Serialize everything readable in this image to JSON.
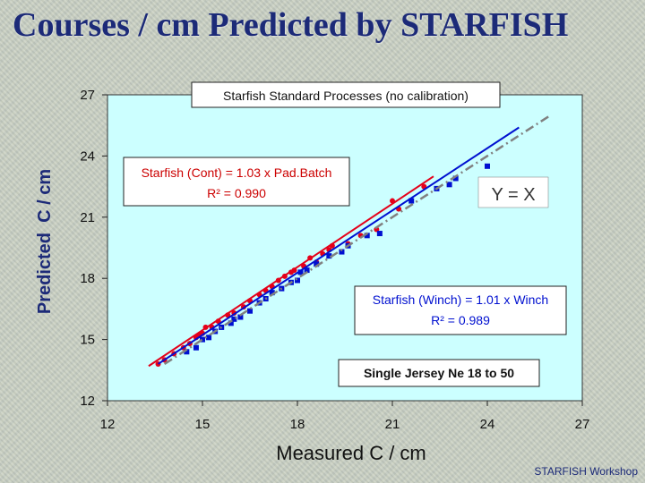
{
  "slide": {
    "title": "Courses / cm Predicted by STARFISH",
    "footer": "STARFISH Workshop"
  },
  "colors": {
    "plot_background": "#ccffff",
    "cont_series": "#e4001a",
    "winch_series": "#0010d0",
    "identity_line": "#808080",
    "title_text": "#1c2a78"
  },
  "chart_data": {
    "type": "scatter",
    "xlabel": "Measured C / cm",
    "ylabel": "Predicted  C / cm",
    "xlim": [
      12,
      27
    ],
    "ylim": [
      12,
      27
    ],
    "xticks": [
      "12",
      "15",
      "18",
      "21",
      "24",
      "27"
    ],
    "yticks": [
      "12",
      "15",
      "18",
      "21",
      "24",
      "27"
    ],
    "grid": false,
    "annotations": {
      "header": "Starfish Standard Processes (no calibration)",
      "cont_line1": "Starfish (Cont) = 1.03 x Pad.Batch",
      "cont_line2": "R² = 0.990",
      "identity": "Y = X",
      "winch_line1": "Starfish (Winch) = 1.01 x Winch",
      "winch_line2": "R² = 0.989",
      "subset": "Single Jersey Ne 18 to 50"
    },
    "series": [
      {
        "name": "Starfish (Cont)",
        "color": "#e4001a",
        "marker": "circle",
        "trend": [
          [
            13.3,
            13.7
          ],
          [
            22.3,
            23.0
          ]
        ],
        "points": [
          [
            13.6,
            13.8
          ],
          [
            13.8,
            14.0
          ],
          [
            14.1,
            14.3
          ],
          [
            14.4,
            14.6
          ],
          [
            14.6,
            14.8
          ],
          [
            14.8,
            15.1
          ],
          [
            14.9,
            15.2
          ],
          [
            15.0,
            15.3
          ],
          [
            15.1,
            15.6
          ],
          [
            15.3,
            15.6
          ],
          [
            15.5,
            15.9
          ],
          [
            15.8,
            16.2
          ],
          [
            16.0,
            16.3
          ],
          [
            16.3,
            16.6
          ],
          [
            16.5,
            16.9
          ],
          [
            16.8,
            17.2
          ],
          [
            17.0,
            17.4
          ],
          [
            17.2,
            17.6
          ],
          [
            17.4,
            17.9
          ],
          [
            17.6,
            18.1
          ],
          [
            17.8,
            18.3
          ],
          [
            17.9,
            18.4
          ],
          [
            18.2,
            18.6
          ],
          [
            18.4,
            19.0
          ],
          [
            18.6,
            18.8
          ],
          [
            18.8,
            19.2
          ],
          [
            19.0,
            19.4
          ],
          [
            19.1,
            19.6
          ],
          [
            19.4,
            19.3
          ],
          [
            19.6,
            19.7
          ],
          [
            20.0,
            20.1
          ],
          [
            20.5,
            20.4
          ],
          [
            21.0,
            21.8
          ],
          [
            21.2,
            21.4
          ],
          [
            22.0,
            22.5
          ]
        ]
      },
      {
        "name": "Starfish (Winch)",
        "color": "#0010d0",
        "marker": "square",
        "trend": [
          [
            13.6,
            13.8
          ],
          [
            25.0,
            25.4
          ]
        ],
        "points": [
          [
            14.5,
            14.4
          ],
          [
            14.8,
            14.6
          ],
          [
            15.0,
            15.0
          ],
          [
            15.2,
            15.1
          ],
          [
            15.4,
            15.4
          ],
          [
            15.6,
            15.6
          ],
          [
            15.9,
            15.8
          ],
          [
            16.0,
            16.0
          ],
          [
            16.2,
            16.1
          ],
          [
            16.5,
            16.4
          ],
          [
            16.8,
            16.8
          ],
          [
            17.0,
            17.0
          ],
          [
            17.2,
            17.3
          ],
          [
            17.5,
            17.5
          ],
          [
            17.8,
            17.8
          ],
          [
            18.0,
            17.9
          ],
          [
            18.1,
            18.3
          ],
          [
            18.3,
            18.4
          ],
          [
            18.6,
            18.7
          ],
          [
            19.0,
            19.1
          ],
          [
            19.4,
            19.3
          ],
          [
            19.6,
            19.6
          ],
          [
            20.2,
            20.1
          ],
          [
            20.6,
            20.2
          ],
          [
            21.6,
            21.8
          ],
          [
            22.4,
            22.4
          ],
          [
            22.8,
            22.6
          ],
          [
            23.0,
            22.9
          ],
          [
            24.0,
            23.5
          ]
        ]
      },
      {
        "name": "Y = X",
        "color": "#808080",
        "marker": "none",
        "trend": [
          [
            13.8,
            13.8
          ],
          [
            26.0,
            26.0
          ]
        ],
        "points": []
      }
    ]
  }
}
